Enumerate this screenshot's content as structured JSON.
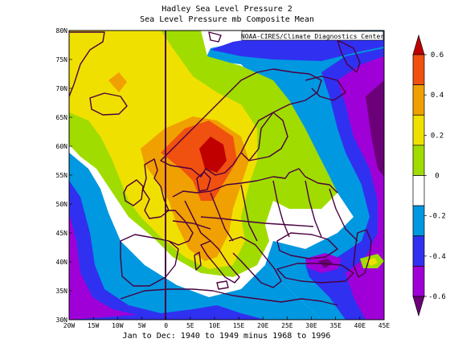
{
  "title_line1": "Hadley Sea Level Pressure 2",
  "title_line2": "Sea Level Pressure mb Composite Mean",
  "credit": "NOAA-CIRES/Climate Diagnostics Center",
  "footer": "Jan to Dec: 1940 to 1949 minus 1968 to 1996",
  "axes": {
    "lon_ticks": [
      "20W",
      "15W",
      "10W",
      "5W",
      "0",
      "5E",
      "10E",
      "15E",
      "20E",
      "25E",
      "30E",
      "35E",
      "40E",
      "45E"
    ],
    "lat_ticks": [
      "30N",
      "35N",
      "40N",
      "45N",
      "50N",
      "55N",
      "60N",
      "65N",
      "70N",
      "75N",
      "80N"
    ]
  },
  "colorbar": {
    "labels": [
      "0.6",
      "0.4",
      "0.2",
      "0",
      "-0.2",
      "-0.4",
      "-0.6"
    ],
    "colors": [
      "#c00000",
      "#f05010",
      "#f0a000",
      "#f0e000",
      "#a0dc00",
      "#ffffff",
      "#0098e0",
      "#3030f0",
      "#a000d8",
      "#6c0078"
    ]
  },
  "palette": {
    "darkred": "#c00000",
    "red": "#f05010",
    "orange": "#f0a000",
    "yellow": "#f0e000",
    "lightgreen": "#a0dc00",
    "white": "#ffffff",
    "lightblue": "#0098e0",
    "blue": "#3030f0",
    "purple": "#a000d8",
    "darkpurple": "#6c0078",
    "coast": "#4a0040"
  }
}
